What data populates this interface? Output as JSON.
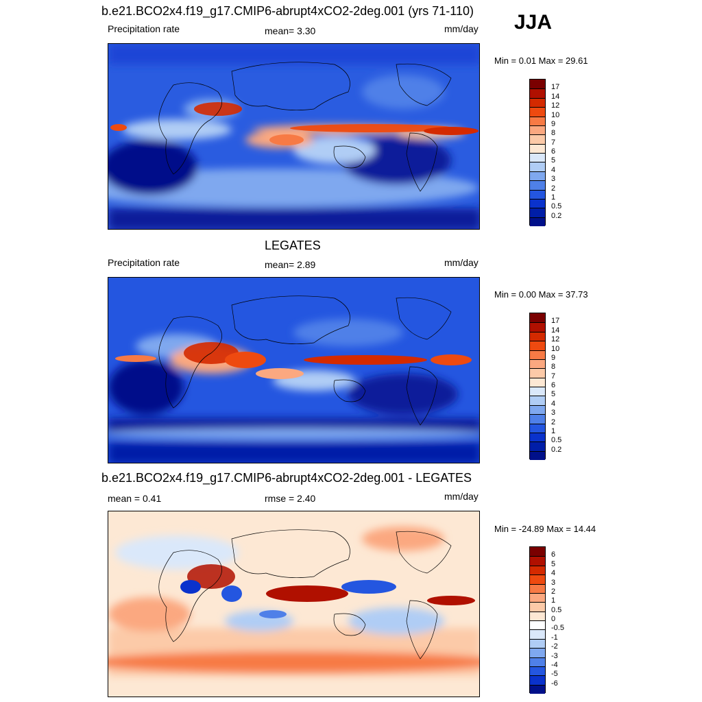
{
  "season": "JJA",
  "panels": [
    {
      "title": "b.e21.BCO2x4.f19_g17.CMIP6-abrupt4xCO2-2deg.001 (yrs 71-110)",
      "left_label": "Precipitation rate",
      "mid_label": "mean=   3.30",
      "units": "mm/day",
      "minmax": "Min =   0.01 Max =  29.61"
    },
    {
      "title": "LEGATES",
      "left_label": "Precipitation rate",
      "mid_label": "mean=   2.89",
      "units": "mm/day",
      "minmax": "Min =   0.00 Max =  37.73"
    },
    {
      "title": "b.e21.BCO2x4.f19_g17.CMIP6-abrupt4xCO2-2deg.001 - LEGATES",
      "left_label": "mean =   0.41",
      "mid_label": "rmse =   2.40",
      "units": "mm/day",
      "minmax": "Min = -24.89 Max =  14.44"
    }
  ],
  "colorbars": {
    "precip": {
      "labels": [
        "17",
        "14",
        "12",
        "10",
        "9",
        "8",
        "7",
        "6",
        "5",
        "4",
        "3",
        "2",
        "1",
        "0.5",
        "0.2"
      ],
      "colors": [
        "#7a0000",
        "#b01000",
        "#d42a00",
        "#ee4a10",
        "#f77a45",
        "#fba880",
        "#fccaa8",
        "#fde8d4",
        "#dae8fa",
        "#b0cdf5",
        "#7fa8ef",
        "#4f80e8",
        "#2456e0",
        "#0a32cc",
        "#001ea8",
        "#00108a"
      ]
    },
    "diff": {
      "labels": [
        "6",
        "5",
        "4",
        "3",
        "2",
        "1",
        "0.5",
        "0",
        "-0.5",
        "-1",
        "-2",
        "-3",
        "-4",
        "-5",
        "-6"
      ],
      "colors": [
        "#7a0000",
        "#b01000",
        "#d42a00",
        "#ee4a10",
        "#f77a45",
        "#fba880",
        "#fccaa8",
        "#fde8d4",
        "#ffffff",
        "#dae8fa",
        "#b0cdf5",
        "#7fa8ef",
        "#4f80e8",
        "#2456e0",
        "#0a32cc",
        "#00108a"
      ]
    }
  }
}
